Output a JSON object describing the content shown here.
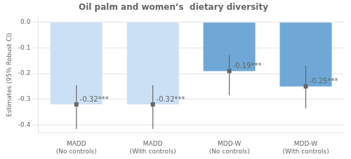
{
  "chart_data": {
    "type": "bar",
    "title": "Oil palm and women’s  dietary diversity",
    "ylabel": "Estimates (95% Robust CI)",
    "categories": [
      "MADD\n(No controls)",
      "MADD\n(With controls)",
      "MDD-W\n(No controls)",
      "MDD-W\n(With controls)"
    ],
    "values": [
      -0.32,
      -0.32,
      -0.19,
      -0.25
    ],
    "value_labels": [
      "-0.32***",
      "-0.32***",
      "-0.19***",
      "-0.25***"
    ],
    "data_labels": true,
    "ci_lower": [
      -0.415,
      -0.415,
      -0.285,
      -0.335
    ],
    "ci_upper": [
      -0.245,
      -0.245,
      -0.128,
      -0.168
    ],
    "colors": [
      "#cce0f5",
      "#cce0f5",
      "#6fa8d6",
      "#6fa8d6"
    ],
    "marker": "square",
    "ylim": [
      -0.43,
      0.02
    ],
    "yticks": [
      {
        "value": 0.0,
        "label": "0.0"
      },
      -0.1,
      -0.2,
      -0.3,
      -0.4
    ],
    "grid": true
  }
}
